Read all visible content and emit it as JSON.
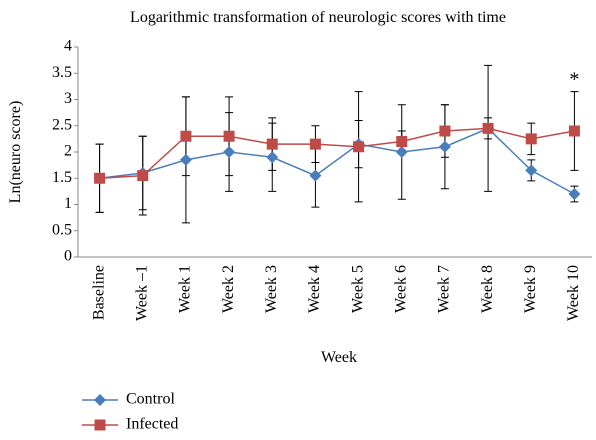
{
  "chart_data": {
    "type": "line",
    "title": "Logarithmic transformation of neurologic scores with time",
    "x_label": "Week",
    "y_label": "Ln(neuro score)",
    "categories": [
      "Baseline",
      "Week –1",
      "Week 1",
      "Week 2",
      "Week 3",
      "Week 4",
      "Week 5",
      "Week 6",
      "Week 7",
      "Week 8",
      "Week 9",
      "Week 10"
    ],
    "series": [
      {
        "name": "Control",
        "color": "#4a7ebb",
        "marker": "diamond",
        "values": [
          1.5,
          1.6,
          1.85,
          2.0,
          1.9,
          1.55,
          2.15,
          2.0,
          2.1,
          2.45,
          1.65,
          1.2
        ],
        "errors": [
          0.65,
          0.7,
          1.2,
          0.75,
          0.65,
          0.6,
          0.45,
          0.9,
          0.8,
          1.2,
          0.2,
          0.15
        ]
      },
      {
        "name": "Infected",
        "color": "#be4b48",
        "marker": "square",
        "values": [
          1.5,
          1.55,
          2.3,
          2.3,
          2.15,
          2.15,
          2.1,
          2.2,
          2.4,
          2.45,
          2.25,
          2.4
        ],
        "errors": [
          0.65,
          0.75,
          0.75,
          0.75,
          0.5,
          0.35,
          1.05,
          0.2,
          0.5,
          0.2,
          0.3,
          0.75
        ]
      }
    ],
    "ylim": [
      0,
      4
    ],
    "yticks": [
      0,
      0.5,
      1,
      1.5,
      2,
      2.5,
      3,
      3.5,
      4
    ],
    "grid": false,
    "annotations": [
      {
        "text": "*",
        "x": "Week 10"
      }
    ]
  }
}
